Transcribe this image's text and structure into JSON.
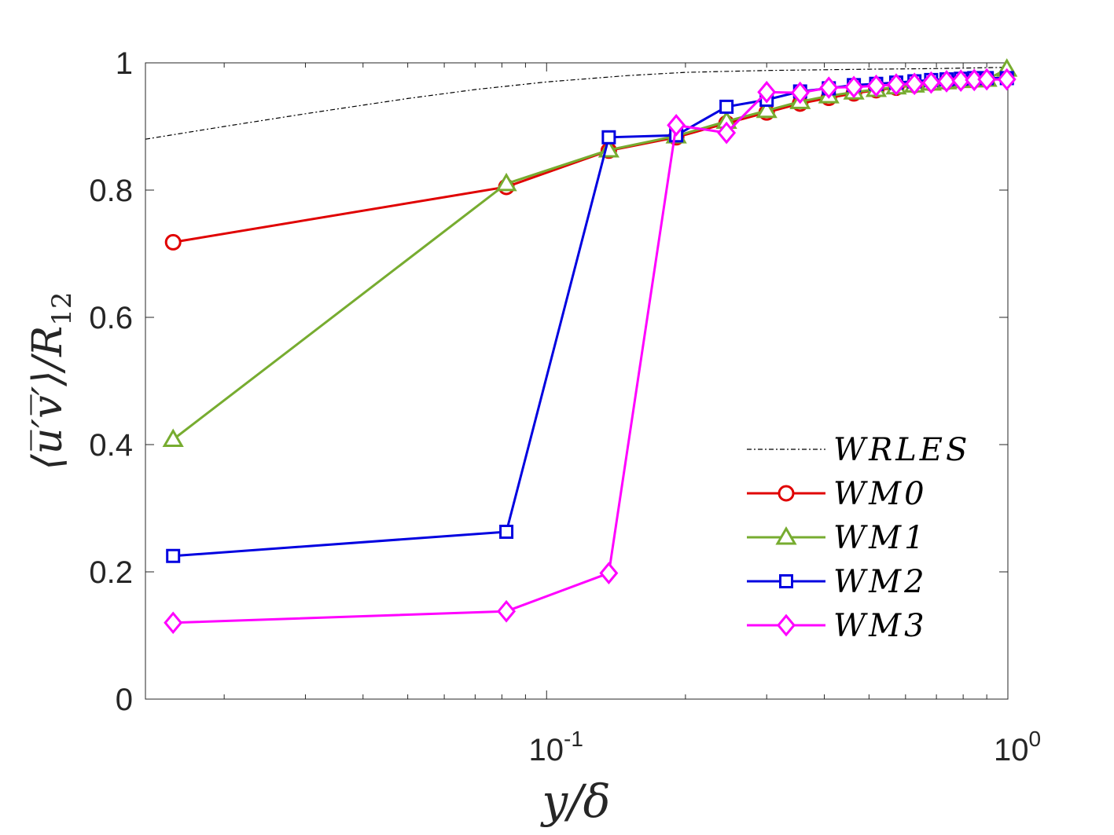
{
  "chart_data": {
    "type": "line",
    "x_scale": "log",
    "xlim": [
      0.0135,
      1.0
    ],
    "ylim": [
      0,
      1
    ],
    "xlabel": "y/δ",
    "ylabel": "⟨u̅′v̅′⟩/R",
    "ylabel_subscript": "12",
    "x_ticks": [
      {
        "value": 0.1,
        "base": "10",
        "exp": "-1"
      },
      {
        "value": 1.0,
        "base": "10",
        "exp": "0"
      }
    ],
    "y_ticks": [
      {
        "value": 0,
        "label": "0"
      },
      {
        "value": 0.2,
        "label": "0.2"
      },
      {
        "value": 0.4,
        "label": "0.4"
      },
      {
        "value": 0.6,
        "label": "0.6"
      },
      {
        "value": 0.8,
        "label": "0.8"
      },
      {
        "value": 1,
        "label": "1"
      }
    ],
    "legend_position": "right-middle",
    "series": [
      {
        "name": "WRLES",
        "color": "#000000",
        "marker": "none",
        "style": "dashdot",
        "x": [
          0.0135,
          0.02,
          0.03,
          0.05,
          0.07,
          0.1,
          0.15,
          0.2,
          0.3,
          0.5,
          0.7,
          1.0
        ],
        "y": [
          0.88,
          0.9,
          0.92,
          0.944,
          0.958,
          0.97,
          0.98,
          0.985,
          0.988,
          0.99,
          0.991,
          0.993
        ]
      },
      {
        "name": "WM0",
        "color": "#e00000",
        "marker": "circle",
        "x": [
          0.0155,
          0.0818,
          0.1364,
          0.191,
          0.2455,
          0.3,
          0.3545,
          0.4091,
          0.4636,
          0.5182,
          0.5727,
          0.6273,
          0.6818,
          0.7364,
          0.7909,
          0.8455,
          0.9
        ],
        "y": [
          0.718,
          0.805,
          0.862,
          0.883,
          0.905,
          0.922,
          0.936,
          0.945,
          0.952,
          0.957,
          0.961,
          0.965,
          0.968,
          0.97,
          0.972,
          0.973,
          0.974
        ]
      },
      {
        "name": "WM1",
        "color": "#77ac30",
        "marker": "triangle",
        "x": [
          0.0155,
          0.0818,
          0.1364,
          0.191,
          0.2455,
          0.3,
          0.3545,
          0.4091,
          0.4636,
          0.5182,
          0.5727,
          0.6273,
          0.6818,
          0.7364,
          0.7909,
          0.8455,
          0.9,
          0.995
        ],
        "y": [
          0.408,
          0.81,
          0.863,
          0.885,
          0.908,
          0.925,
          0.939,
          0.948,
          0.954,
          0.958,
          0.962,
          0.965,
          0.968,
          0.97,
          0.972,
          0.973,
          0.974,
          0.99
        ]
      },
      {
        "name": "WM2",
        "color": "#0000e0",
        "marker": "square",
        "x": [
          0.0155,
          0.0818,
          0.1364,
          0.191,
          0.2455,
          0.3,
          0.3545,
          0.4091,
          0.4636,
          0.5182,
          0.5727,
          0.6273,
          0.6818,
          0.7364,
          0.7909,
          0.8455,
          0.9,
          0.995
        ],
        "y": [
          0.225,
          0.263,
          0.883,
          0.886,
          0.931,
          0.942,
          0.955,
          0.96,
          0.965,
          0.967,
          0.969,
          0.971,
          0.973,
          0.974,
          0.975,
          0.976,
          0.976,
          0.976
        ]
      },
      {
        "name": "WM3",
        "color": "#ff00ff",
        "marker": "diamond",
        "x": [
          0.0155,
          0.0818,
          0.1364,
          0.191,
          0.2455,
          0.3,
          0.3545,
          0.4091,
          0.4636,
          0.5182,
          0.5727,
          0.6273,
          0.6818,
          0.7364,
          0.7909,
          0.8455,
          0.9,
          0.995
        ],
        "y": [
          0.12,
          0.138,
          0.198,
          0.902,
          0.89,
          0.954,
          0.953,
          0.961,
          0.962,
          0.964,
          0.966,
          0.967,
          0.969,
          0.971,
          0.972,
          0.973,
          0.974,
          0.974
        ]
      }
    ]
  }
}
